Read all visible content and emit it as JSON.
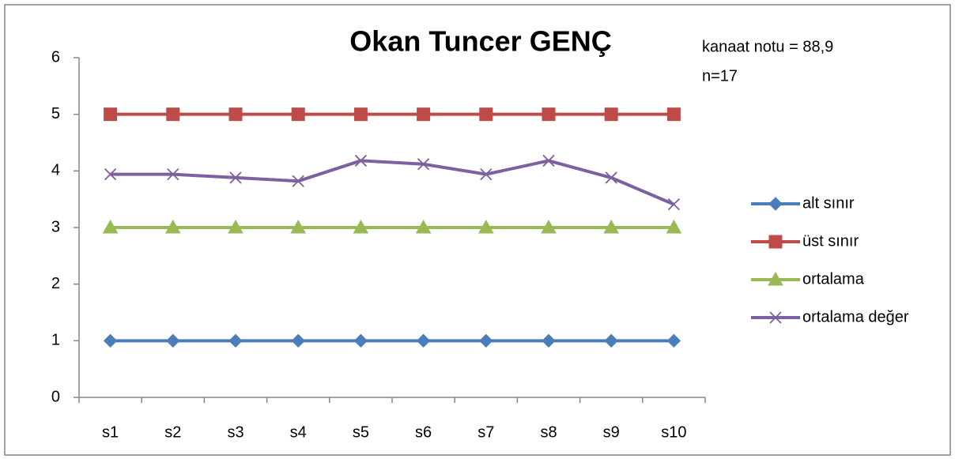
{
  "chart_data": {
    "type": "line",
    "title": "Okan Tuncer GENÇ",
    "annotations": [
      "kanaat notu = 88,9",
      "n=17"
    ],
    "categories": [
      "s1",
      "s2",
      "s3",
      "s4",
      "s5",
      "s6",
      "s7",
      "s8",
      "s9",
      "s10"
    ],
    "series": [
      {
        "name": "alt sınır",
        "color": "#4a7ebb",
        "marker": "diamond",
        "values": [
          1,
          1,
          1,
          1,
          1,
          1,
          1,
          1,
          1,
          1
        ]
      },
      {
        "name": "üst sınır",
        "color": "#be4b48",
        "marker": "square",
        "values": [
          5,
          5,
          5,
          5,
          5,
          5,
          5,
          5,
          5,
          5
        ]
      },
      {
        "name": "ortalama",
        "color": "#98b954",
        "marker": "triangle",
        "values": [
          3,
          3,
          3,
          3,
          3,
          3,
          3,
          3,
          3,
          3
        ]
      },
      {
        "name": "ortalama değer",
        "color": "#7d60a0",
        "marker": "x",
        "values": [
          3.94,
          3.94,
          3.88,
          3.82,
          4.18,
          4.12,
          3.94,
          4.18,
          3.88,
          3.41
        ]
      }
    ],
    "ylim": [
      0,
      6
    ],
    "yticks": [
      0,
      1,
      2,
      3,
      4,
      5,
      6
    ],
    "grid": false,
    "legend": "right"
  }
}
